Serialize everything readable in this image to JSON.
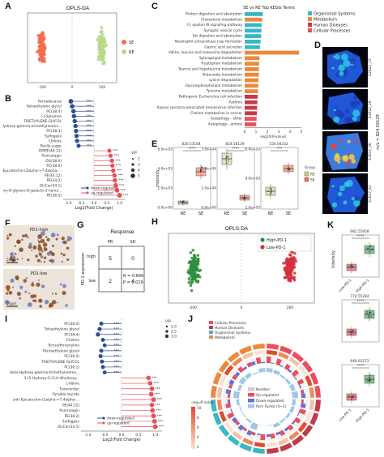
{
  "panel_labels": {
    "A": "A",
    "B": "B",
    "C": "C",
    "D": "D",
    "E": "E",
    "F": "F",
    "G": "G",
    "H": "H",
    "I": "I",
    "J": "J",
    "K": "K"
  },
  "colors": {
    "se": "#f26c4f",
    "re": "#b9d88a",
    "down": "#2e4f8f",
    "up": "#e8505b",
    "teal": "#3cb7c4",
    "green_dark": "#2d8f3c",
    "red_dark": "#d22f3a"
  },
  "panelA": {
    "chart_data": {
      "type": "scatter",
      "title": "OPLS-DA",
      "xlabel": "",
      "ylabel": "",
      "xlim": [
        -150,
        150
      ],
      "ylim": [
        -60,
        60
      ],
      "x_ticks": [
        "-100",
        "0",
        "100"
      ],
      "legend": [
        {
          "name": "SE",
          "color": "#f26c4f"
        },
        {
          "name": "RE",
          "color": "#b9d88a"
        }
      ]
    }
  },
  "panelB": {
    "chart_data": {
      "type": "lollipop",
      "xlabel": "Log2(Fold Change)",
      "x_ticks": [
        "-1.0",
        "-0.5",
        "0.0",
        "0.5",
        "1.0"
      ],
      "xlim": [
        -1.2,
        1.2
      ],
      "categories": [
        "Pentadecanal",
        "Tetraethylene glycol",
        "PC(38:4)",
        "(-)-Salsoline",
        "TRIETHYLENE GLYCOL",
        "beta-Hydroxy-gamma-trimethylammo...",
        "PC(38:3)",
        "Sulfogalix",
        "Choline",
        "Perilla sugar",
        "DMPE(44:12)",
        "Punicalagin",
        "DG(38:0)",
        "PC(38:5)",
        "anti-Epicatechin-(2alpha->7,4alpha-...",
        "PE(44:12)",
        "PE(34:2)",
        "GlcCer(34:1)",
        "3-Deoxy-D-glycero-D-galacto-2-nonul...",
        "PE(36:5)"
      ],
      "values": [
        -0.9,
        -0.85,
        -0.8,
        -0.78,
        -0.75,
        -0.72,
        -0.7,
        -0.68,
        -0.66,
        -0.6,
        0.6,
        0.65,
        0.7,
        0.72,
        0.75,
        0.8,
        0.82,
        0.85,
        0.9,
        1.0
      ],
      "stars": [
        "***",
        "***",
        "***",
        "***",
        "***",
        "***",
        "***",
        "***",
        "***",
        "***",
        "***",
        "***",
        "***",
        "***",
        "***",
        "***",
        "***",
        "***",
        "***",
        "***"
      ],
      "vip_legend_title": "VIP",
      "vip_legend": [
        "2",
        "3",
        "4",
        "5"
      ],
      "legend": [
        {
          "name": "down-regulated",
          "color": "#2e4f8f"
        },
        {
          "name": "up-regulated",
          "color": "#e8505b"
        }
      ]
    }
  },
  "panelC": {
    "chart_data": {
      "type": "bar",
      "title": "SE vs RE Top KEGG Terms",
      "xlabel": "-log10(P-value)",
      "x_ticks": [
        "0",
        "1",
        "2",
        "3",
        "4",
        "5"
      ],
      "xlim": [
        0,
        5
      ],
      "categories": [
        "Protein digestion and absorption",
        "Cholesterol metabolism",
        "Fc epsilon RI signaling pathway",
        "Synaptic vesicle cycle",
        "Fat digestion and absorption",
        "Neutrophil extracellular trap formation",
        "Gastric acid secretion",
        "Valine, leucine and isoleucine degradation",
        "Sphingolipid metabolism",
        "Tryptophan metabolism",
        "Taurine and hypotaurine metabolism",
        "Butanoate metabolism",
        "Lysine degradation",
        "Glycerophospholipid metabolism",
        "Tyrosine metabolism",
        "Pathogenic Escherichia coli infection",
        "Asthma",
        "Kaposi sarcoma-associated herpesvirus infection",
        "Choline metabolism in cancer",
        "Autophagy - other",
        "Autophagy - animal"
      ],
      "values": [
        1.6,
        1.55,
        1.5,
        1.48,
        1.45,
        1.4,
        1.35,
        4.8,
        1.3,
        1.28,
        1.26,
        1.25,
        1.22,
        1.2,
        1.18,
        1.15,
        1.12,
        1.1,
        1.08,
        1.05,
        1.02
      ],
      "groups": [
        "Organismal Systems",
        "Metabolism",
        "Organismal Systems",
        "Organismal Systems",
        "Organismal Systems",
        "Organismal Systems",
        "Organismal Systems",
        "Metabolism",
        "Metabolism",
        "Metabolism",
        "Metabolism",
        "Metabolism",
        "Metabolism",
        "Metabolism",
        "Metabolism",
        "Human Diseases",
        "Human Diseases",
        "Human Diseases",
        "Human Diseases",
        "Cellular Processes",
        "Cellular Processes"
      ],
      "legend": [
        {
          "name": "Organismal Systems",
          "color": "#3cb7c4"
        },
        {
          "name": "Metabolism",
          "color": "#e98a3f"
        },
        {
          "name": "Human Diseases",
          "color": "#c23b4a"
        },
        {
          "name": "Cellular Processes",
          "color": "#e8505b"
        }
      ]
    }
  },
  "panelD": {
    "mz_label": "m/z = 824.56129",
    "sample_labels": [
      "E2022_15",
      "E2022_26",
      "E2022_36",
      "E2022_42"
    ]
  },
  "panelE": {
    "chart_data": [
      {
        "type": "box",
        "title": "820.53184",
        "categories": [
          "RE",
          "SE"
        ],
        "ylabel": "Intensity",
        "y_ticks": [
          "0.0e+00",
          "2.0e+03",
          "4.0e+03",
          "6.0e+03"
        ],
        "medians": [
          500,
          4500
        ],
        "sig": "****"
      },
      {
        "type": "box",
        "title": "824.56129",
        "categories": [
          "RE",
          "SE"
        ],
        "y_ticks": [
          "0.0e+00",
          "1.0e+04",
          "2.0e+04",
          "3.0e+04"
        ],
        "medians": [
          19000,
          3000
        ],
        "sig": "****"
      },
      {
        "type": "box",
        "title": "156.04332",
        "categories": [
          "RE",
          "SE"
        ],
        "y_ticks": [
          "2.0e+03",
          "4.0e+03",
          "6.0e+03"
        ],
        "medians": [
          3500,
          5600
        ],
        "sig": "***"
      }
    ],
    "legend_title": "Group",
    "legend": [
      {
        "name": "RE",
        "color": "#b9d88a"
      },
      {
        "name": "SE",
        "color": "#f26c4f"
      }
    ]
  },
  "panelF": {
    "labels": [
      "PD1-high",
      "PD1-low"
    ],
    "scale": "50μm"
  },
  "panelG": {
    "title": "Response",
    "col_labels": [
      "PR",
      "SD"
    ],
    "row_labels": [
      "high",
      "low"
    ],
    "row_axis": "PD-1 expression",
    "cells": [
      [
        "5",
        "0"
      ],
      [
        "2",
        "4"
      ]
    ],
    "stats": [
      "R = 0.690",
      "P = 0.019"
    ]
  },
  "panelH": {
    "chart_data": {
      "type": "scatter",
      "title": "OPLS-DA",
      "xlim": [
        -300,
        300
      ],
      "x_ticks": [
        "-200",
        "0",
        "200"
      ],
      "legend": [
        {
          "name": "High-PD-1",
          "color": "#2d8f3c"
        },
        {
          "name": "Low-PD-1",
          "color": "#d22f3a"
        }
      ]
    }
  },
  "panelI": {
    "chart_data": {
      "type": "lollipop",
      "xlabel": "Log2(Fold Change)",
      "x_ticks": [
        "-1.0",
        "-0.5",
        "0.0",
        "0.5",
        "1.0"
      ],
      "xlim": [
        -1.2,
        1.2
      ],
      "categories": [
        "PC(38:4)",
        "Tetraethylene glycol",
        "PC(38:4)",
        "Choline",
        "Tyrosylthreonyline",
        "Pentaethylene glycol",
        "PC(36:2)",
        "TRIETHYLENE GLYCOL",
        "PC(36:1)",
        "beta-Hydroxy-gamma-trimethylammo...",
        "3-(5-Hydroxy-2-(3,4-dihydroxy...",
        "L-Valine",
        "Taxoventan",
        "Faradiol laurate",
        "anti-Epicatechin-(2alpha->7,4alpha-...",
        "PE(44:12)",
        "Punicalagin",
        "PE(38:2)",
        "Sulfogalix",
        "GlcCer(34:1)"
      ],
      "values": [
        -0.6,
        -0.65,
        -0.7,
        -0.55,
        -0.5,
        -0.6,
        -0.62,
        -0.58,
        -0.55,
        -0.5,
        0.8,
        0.85,
        0.9,
        0.88,
        0.95,
        0.9,
        0.92,
        0.95,
        0.98,
        1.0
      ],
      "stars": [
        "***",
        "***",
        "***",
        "***",
        "***",
        "***",
        "***",
        "***",
        "***",
        "***",
        "***",
        "***",
        "***",
        "***",
        "***",
        "***",
        "***",
        "***",
        "***",
        "***"
      ],
      "vip_legend_title": "VIP",
      "vip_legend": [
        "2.0",
        "2.5",
        "3.0"
      ],
      "legend": [
        {
          "name": "down-regulated",
          "color": "#2e4f8f"
        },
        {
          "name": "up-regulated",
          "color": "#e8505b"
        }
      ]
    }
  },
  "panelJ": {
    "legend_top": [
      {
        "name": "Cellular Processes",
        "color": "#e8505b"
      },
      {
        "name": "Human Diseases",
        "color": "#c23b4a"
      },
      {
        "name": "Organismal Systems",
        "color": "#3cb7c4"
      },
      {
        "name": "Metabolism",
        "color": "#e98a3f"
      }
    ],
    "legend_inner": [
      {
        "name": "Number",
        "color": "#cccccc"
      },
      {
        "name": "Up-regulated",
        "color": "#e8505b"
      },
      {
        "name": "Down-regulated",
        "color": "#6b6fd6"
      },
      {
        "name": "Rich Factor (0~1)",
        "color": "#9ec7e8"
      }
    ],
    "colorbar_label": "-log₁₀P-value",
    "colorbar_ticks": [
      "10",
      "8",
      "6",
      "4",
      "2"
    ]
  },
  "panelK": {
    "chart_data": [
      {
        "type": "box",
        "title": "682.55958",
        "categories": [
          "Low-PD-1",
          "High-PD-1"
        ],
        "ylabel": "Intensity",
        "sig": "****"
      },
      {
        "type": "box",
        "title": "774.55284",
        "categories": [
          "Low-PD-1",
          "High-PD-1"
        ],
        "sig": "****"
      },
      {
        "type": "box",
        "title": "646.61572",
        "categories": [
          "Low-PD-1",
          "High-PD-1"
        ],
        "sig": "****"
      }
    ]
  }
}
